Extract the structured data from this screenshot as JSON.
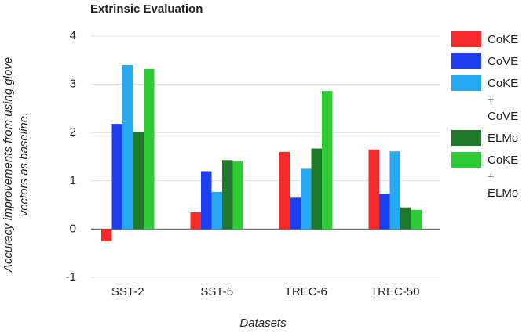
{
  "chart_data": {
    "type": "bar",
    "title": "Extrinsic Evaluation",
    "x_label": "Datasets",
    "y_label": "Accuracy improvements from using glove vectors as baseline.",
    "categories": [
      "SST-2",
      "SST-5",
      "TREC-6",
      "TREC-50"
    ],
    "series": [
      {
        "name": "CoKE",
        "color": "#f62a2a",
        "values": [
          -0.25,
          0.35,
          1.6,
          1.65
        ]
      },
      {
        "name": "CoVE",
        "color": "#1a3ef0",
        "values": [
          2.18,
          1.2,
          0.65,
          0.73
        ]
      },
      {
        "name": "CoKE + CoVE",
        "color": "#24a9f2",
        "values": [
          3.4,
          0.77,
          1.25,
          1.61
        ]
      },
      {
        "name": "ELMo",
        "color": "#1e7a2a",
        "values": [
          2.02,
          1.43,
          1.67,
          0.45
        ]
      },
      {
        "name": "CoKE + ELMo",
        "color": "#2ecc36",
        "values": [
          3.32,
          1.41,
          2.86,
          0.4
        ]
      }
    ],
    "ylim": [
      -1,
      4
    ],
    "yticks": [
      -1,
      0,
      1,
      2,
      3,
      4
    ],
    "grid": true,
    "legend": "right"
  }
}
